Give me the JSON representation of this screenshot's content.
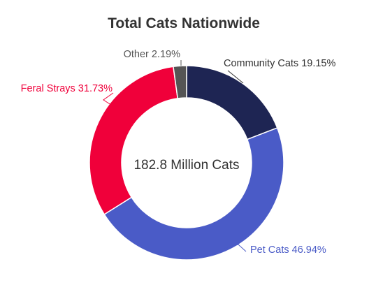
{
  "chart_data": {
    "type": "pie",
    "variant": "donut",
    "title": "Total Cats Nationwide",
    "center_label": "182.8 Million Cats",
    "slices": [
      {
        "label": "Community Cats 19.15%",
        "name": "Community Cats",
        "value": 19.15,
        "color": "#1e2553",
        "text_color": "#333333"
      },
      {
        "label": "Pet Cats 46.94%",
        "name": "Pet Cats",
        "value": 46.94,
        "color": "#4a5bc7",
        "text_color": "#4a5bc7"
      },
      {
        "label": "Feral Strays 31.73%",
        "name": "Feral Strays",
        "value": 31.73,
        "color": "#f0003a",
        "text_color": "#f0003a"
      },
      {
        "label": "Other 2.19%",
        "name": "Other",
        "value": 2.19,
        "color": "#555555",
        "text_color": "#555555"
      }
    ],
    "legend": "none"
  }
}
